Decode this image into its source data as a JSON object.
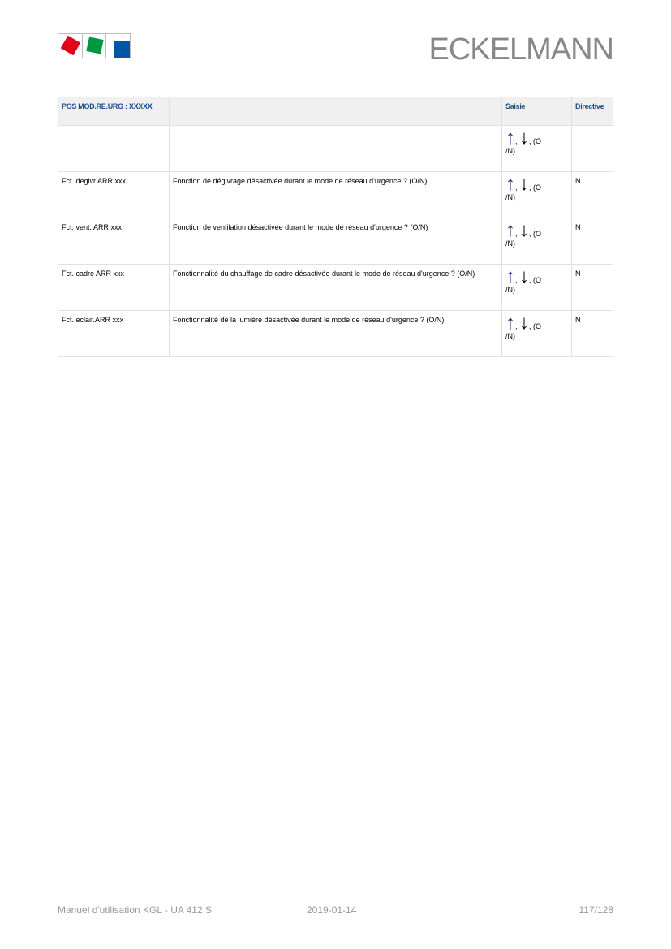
{
  "header": {
    "brand": "ECKELMANN",
    "logo_colors": [
      "#e2001a",
      "#009640",
      "#0055a4"
    ]
  },
  "table": {
    "headers": [
      "POS MOD.RE.URG : XXXXX",
      "",
      "Saisie",
      "Directive"
    ],
    "saisie": {
      "sep1": ",",
      "sep2": ", (O",
      "tail": "/N)"
    },
    "rows": [
      {
        "name": "",
        "desc": "",
        "directive": ""
      },
      {
        "name": "Fct. degivr.ARR xxx",
        "desc": "Fonction de dégivrage désactivée durant le mode de réseau d'urgence ? (O/N)",
        "directive": "N"
      },
      {
        "name": "Fct. vent. ARR xxx",
        "desc": "Fonction de ventilation désactivée durant le mode de réseau d'urgence ? (O/N)",
        "directive": "N"
      },
      {
        "name": "Fct. cadre ARR xxx",
        "desc": "Fonctionnalité du chauffage de cadre désactivée durant le mode de réseau d'urgence ? (O/N)",
        "directive": "N"
      },
      {
        "name": "Fct. eclair.ARR xxx",
        "desc": "Fonctionnalité de la lumière désactivée durant le mode de réseau d'urgence ? (O/N)",
        "directive": "N"
      }
    ]
  },
  "footer": {
    "manual": "Manuel d'utilisation KGL - UA 412 S",
    "date": "2019-01-14",
    "page": "117/128"
  }
}
